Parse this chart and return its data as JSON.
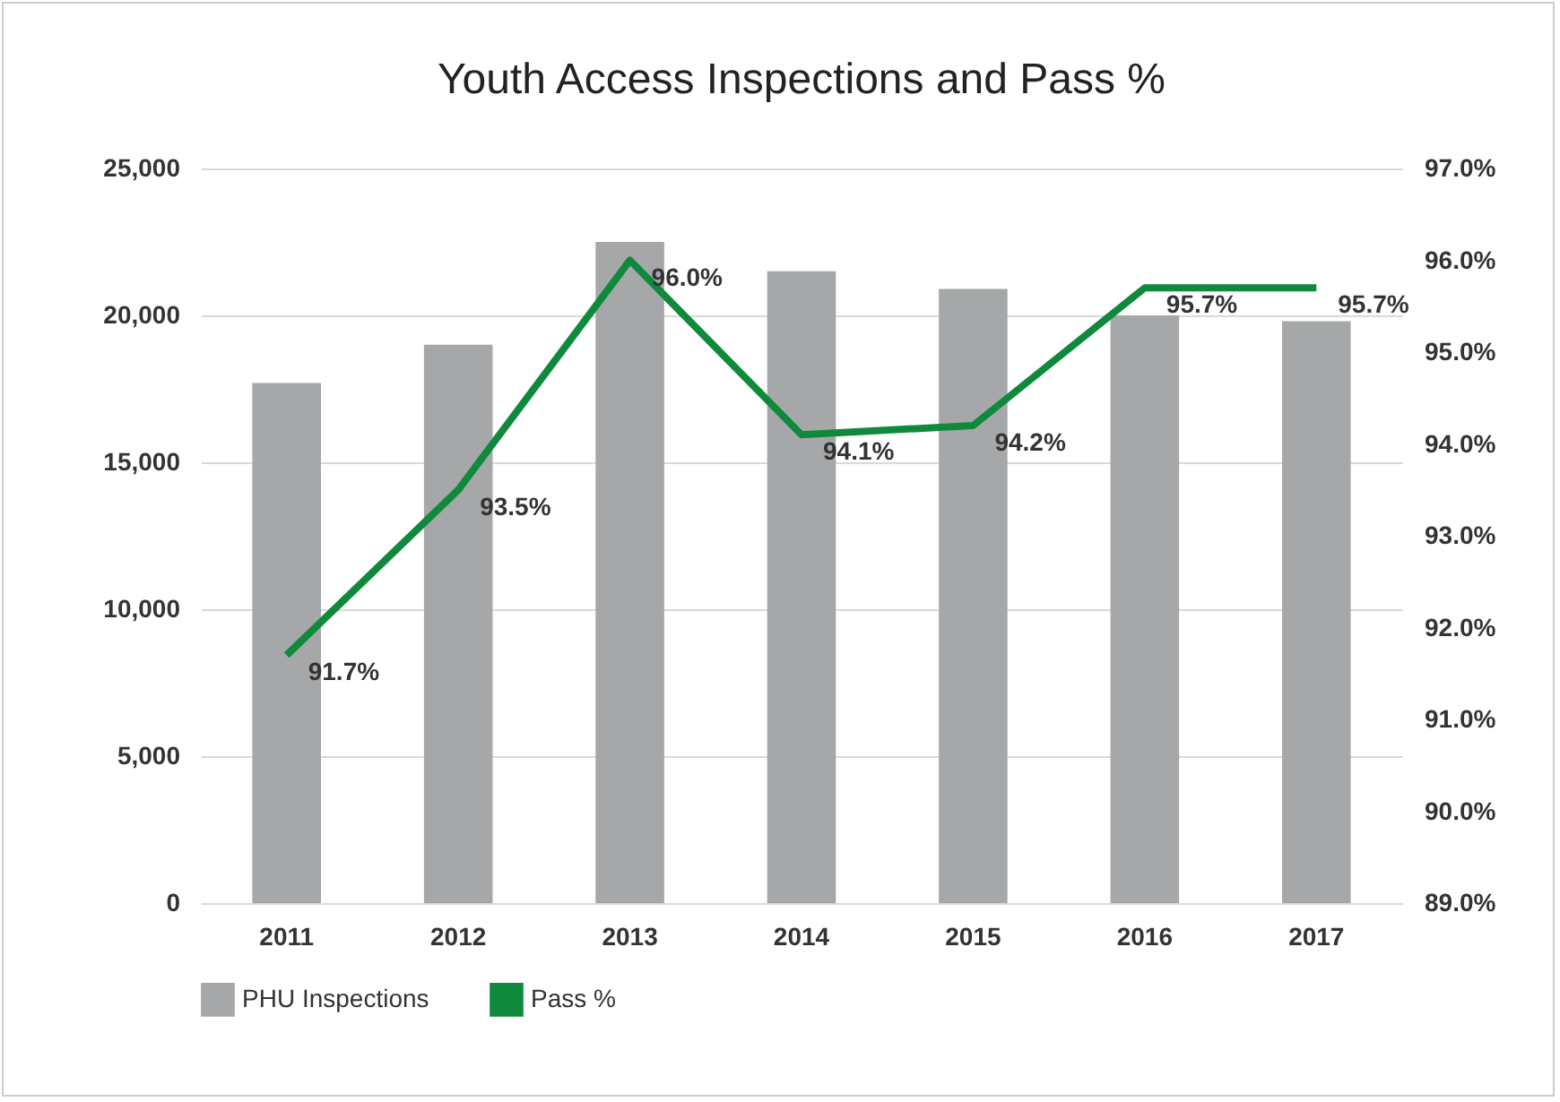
{
  "chart_data": {
    "type": "bar",
    "title": "Youth Access Inspections and Pass %",
    "categories": [
      "2011",
      "2012",
      "2013",
      "2014",
      "2015",
      "2016",
      "2017"
    ],
    "series": [
      {
        "name": "PHU Inspections",
        "color": "#a6a7a9",
        "values": [
          17700,
          19000,
          22500,
          21500,
          20900,
          20000,
          19800
        ]
      },
      {
        "name": "Pass %",
        "type": "line",
        "axis": "y2",
        "color": "#0f8a3c",
        "values": [
          91.7,
          93.5,
          96.0,
          94.1,
          94.2,
          95.7,
          95.7
        ],
        "value_labels": [
          "91.7%",
          "93.5%",
          "96.0%",
          "94.1%",
          "94.2%",
          "95.7%",
          "95.7%"
        ]
      }
    ],
    "ylim": [
      0,
      25000
    ],
    "yticks": [
      {
        "value": 0,
        "label": "0"
      },
      {
        "value": 5000,
        "label": "5,000"
      },
      {
        "value": 10000,
        "label": "10,000"
      },
      {
        "value": 15000,
        "label": "15,000"
      },
      {
        "value": 20000,
        "label": "20,000"
      },
      {
        "value": 25000,
        "label": "25,000"
      }
    ],
    "y2lim": [
      89,
      97
    ],
    "y2ticks": [
      {
        "value": 89,
        "label": "89.0%"
      },
      {
        "value": 90,
        "label": "90.0%"
      },
      {
        "value": 91,
        "label": "91.0%"
      },
      {
        "value": 92,
        "label": "92.0%"
      },
      {
        "value": 93,
        "label": "93.0%"
      },
      {
        "value": 94,
        "label": "94.0%"
      },
      {
        "value": 95,
        "label": "95.0%"
      },
      {
        "value": 96,
        "label": "96.0%"
      },
      {
        "value": 97,
        "label": "97.0%"
      }
    ],
    "grid": "y",
    "legend": "bottom",
    "line_style": "solid"
  }
}
